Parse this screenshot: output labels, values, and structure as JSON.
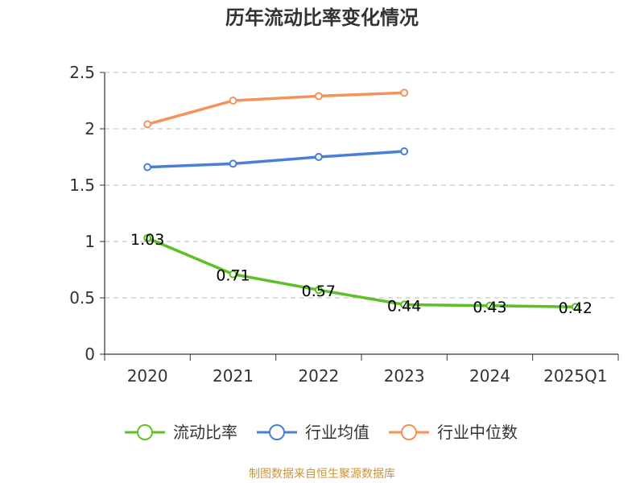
{
  "chart_data": {
    "type": "line",
    "title": "历年流动比率变化情况",
    "categories": [
      "2020",
      "2021",
      "2022",
      "2023",
      "2024",
      "2025Q1"
    ],
    "ylim": [
      0,
      2.5
    ],
    "yticks": [
      "0",
      "0.5",
      "1",
      "1.5",
      "2",
      "2.5"
    ],
    "grid": true,
    "legend_position": "bottom",
    "series": [
      {
        "name": "流动比率",
        "color": "#5cc125",
        "values": [
          1.03,
          0.71,
          0.57,
          0.44,
          0.43,
          0.42
        ],
        "labels": [
          "1.03",
          "0.71",
          "0.57",
          "0.44",
          "0.43",
          "0.42"
        ]
      },
      {
        "name": "行业均值",
        "color": "#4a7fd6",
        "values": [
          1.66,
          1.69,
          1.75,
          1.8,
          null,
          null
        ]
      },
      {
        "name": "行业中位数",
        "color": "#f4925a",
        "values": [
          2.04,
          2.25,
          2.29,
          2.32,
          null,
          null
        ]
      }
    ]
  },
  "source": "制图数据来自恒生聚源数据库"
}
